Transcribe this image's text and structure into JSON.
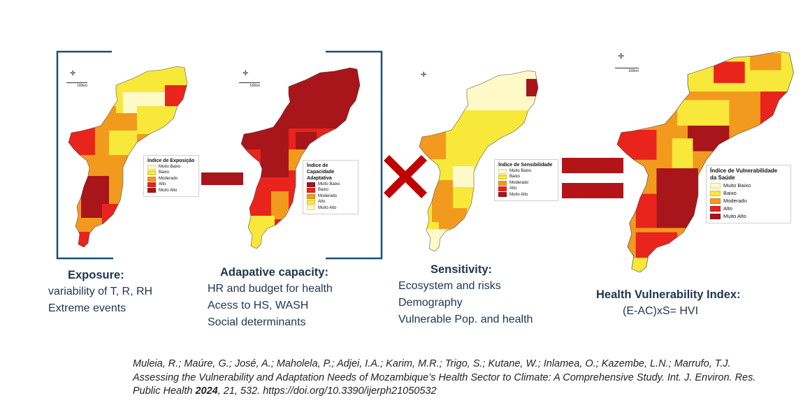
{
  "colors": {
    "muito_baixo": "#fff9c8",
    "baixo": "#f7e83a",
    "moderado": "#f29a1e",
    "alto": "#e8241d",
    "muito_alto": "#a8151a",
    "bracket": "#1f4e79",
    "operator": "#c00000",
    "text": "#1f3550"
  },
  "icons": {
    "compass": "north-arrow-icon",
    "minus": "minus-operator-icon",
    "times": "multiply-operator-icon",
    "equals": "equals-operator-icon"
  },
  "maps": {
    "exposure": {
      "legend_title": "Índice de Exposição",
      "legend_items": [
        "Muito Baixo",
        "Baixo",
        "Moderado",
        "Alto",
        "Muito Alto"
      ],
      "scale": "100km"
    },
    "capacity": {
      "legend_title_1": "Índice de Capacidade",
      "legend_title_2": "Adaptativa",
      "legend_items": [
        "Muito Baixo",
        "Baixo",
        "Moderado",
        "Alto",
        "Muito Alto"
      ],
      "scale": "100km"
    },
    "sensitivity": {
      "legend_title": "Índice de Sensibilidade",
      "legend_items": [
        "Muito Baixo",
        "Baixo",
        "Moderado",
        "Alto",
        "Muito Alto"
      ]
    },
    "hvi": {
      "legend_title_1": "Índice de Vulnerabilidade",
      "legend_title_2": "da Saúde",
      "legend_items": [
        "Muito Baixo",
        "Baixo",
        "Moderado",
        "Alto",
        "Muito Alto"
      ],
      "scale": "100km"
    }
  },
  "labels": {
    "exposure": {
      "title": "Exposure:",
      "lines": [
        "variability of T, R, RH",
        "Extreme events"
      ]
    },
    "capacity": {
      "title": "Adapative capacity:",
      "lines": [
        "HR and budget for health",
        "Acess to HS, WASH",
        "Social determinants"
      ]
    },
    "sensitivity": {
      "title": "Sensitivity:",
      "lines": [
        "Ecosystem and risks",
        "Demography",
        "Vulnerable Pop. and health"
      ]
    },
    "hvi": {
      "title": "Health Vulnerability Index:",
      "formula": "(E-AC)xS= HVI"
    }
  },
  "citation": {
    "authors": "Muleia, R.; Maúre, G.; José, A.; Maholela, P.; Adjei, I.A.; Karim, M.R.; Trigo, S.; Kutane, W.; Inlamea, O.; Kazembe, L.N.; Marrufo, T.J. Assessing the Vulnerability and Adaptation Needs of Mozambique’s Health Sector to Climate: A Comprehensive Study. Int. J. Environ. Res. Public Health ",
    "year": "2024",
    "rest": ", 21, 532. https://doi.org/10.3390/ijerph21050532"
  }
}
